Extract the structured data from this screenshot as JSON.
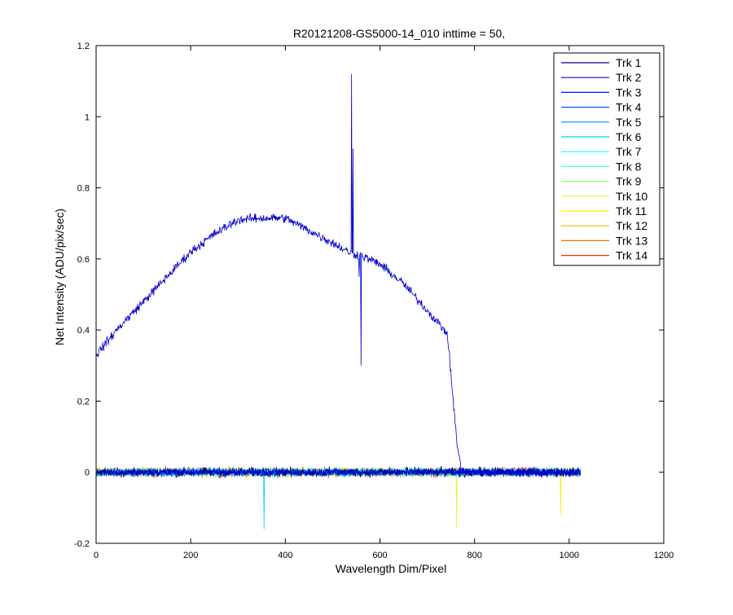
{
  "chart_data": {
    "type": "line",
    "title": "R20121208-GS5000-14_010 inttime = 50,",
    "xlabel": "Wavelength Dim/Pixel",
    "ylabel": "Net Intensity (ADU/pix/sec)",
    "xlim": [
      0,
      1200
    ],
    "ylim": [
      -0.2,
      1.2
    ],
    "xticks": [
      0,
      200,
      400,
      600,
      800,
      1000,
      1200
    ],
    "yticks": [
      -0.2,
      0,
      0.2,
      0.4,
      0.6,
      0.8,
      1,
      1.2
    ],
    "ytick_labels": [
      "-0.2",
      "0",
      "0.2",
      "0.4",
      "0.6",
      "0.8",
      "1",
      "1.2"
    ],
    "grid": false,
    "legend_position": "top-right",
    "x_range": [
      1,
      1024
    ],
    "series": [
      {
        "name": "Trk 1",
        "color": "#00008F",
        "baseline": 0,
        "noise": 0.012,
        "spikes": []
      },
      {
        "name": "Trk 2",
        "color": "#0000CF",
        "baseline": 0,
        "noise": 0.012,
        "profile": [
          [
            0,
            0.33
          ],
          [
            50,
            0.41
          ],
          [
            150,
            0.55
          ],
          [
            200,
            0.62
          ],
          [
            250,
            0.67
          ],
          [
            300,
            0.71
          ],
          [
            350,
            0.715
          ],
          [
            400,
            0.715
          ],
          [
            450,
            0.68
          ],
          [
            500,
            0.645
          ],
          [
            540,
            0.615
          ],
          [
            560,
            0.61
          ],
          [
            600,
            0.585
          ],
          [
            650,
            0.53
          ],
          [
            700,
            0.455
          ],
          [
            740,
            0.395
          ],
          [
            745,
            0.355
          ],
          [
            755,
            0.2
          ],
          [
            763,
            0.08
          ],
          [
            770,
            0.02
          ],
          [
            780,
            0.0
          ]
        ],
        "spikes": [
          [
            540,
            1.12
          ],
          [
            543,
            0.91
          ],
          [
            556,
            0.55
          ],
          [
            560,
            0.3
          ]
        ]
      },
      {
        "name": "Trk 3",
        "color": "#0010FF",
        "baseline": 0,
        "noise": 0.01,
        "spikes": []
      },
      {
        "name": "Trk 4",
        "color": "#0050FF",
        "baseline": 0,
        "noise": 0.01,
        "spikes": []
      },
      {
        "name": "Trk 5",
        "color": "#0090FF",
        "baseline": 0,
        "noise": 0.01,
        "spikes": []
      },
      {
        "name": "Trk 6",
        "color": "#00CFFF",
        "baseline": 0,
        "noise": 0.01,
        "spikes": [
          [
            355,
            -0.16
          ]
        ]
      },
      {
        "name": "Trk 7",
        "color": "#10FFEF",
        "baseline": 0,
        "noise": 0.01,
        "spikes": []
      },
      {
        "name": "Trk 8",
        "color": "#50FFAF",
        "baseline": 0,
        "noise": 0.01,
        "spikes": []
      },
      {
        "name": "Trk 9",
        "color": "#90FF70",
        "baseline": 0,
        "noise": 0.01,
        "spikes": []
      },
      {
        "name": "Trk 10",
        "color": "#CFFF30",
        "baseline": 0,
        "noise": 0.01,
        "spikes": [
          [
            762,
            -0.155
          ]
        ]
      },
      {
        "name": "Trk 11",
        "color": "#FFEF00",
        "baseline": 0,
        "noise": 0.01,
        "spikes": [
          [
            982,
            -0.12
          ]
        ]
      },
      {
        "name": "Trk 12",
        "color": "#FFAF00",
        "baseline": 0,
        "noise": 0.01,
        "spikes": []
      },
      {
        "name": "Trk 13",
        "color": "#FF7000",
        "baseline": 0,
        "noise": 0.01,
        "spikes": []
      },
      {
        "name": "Trk 14",
        "color": "#FF3000",
        "baseline": 0,
        "noise": 0.012,
        "spikes": []
      }
    ]
  }
}
